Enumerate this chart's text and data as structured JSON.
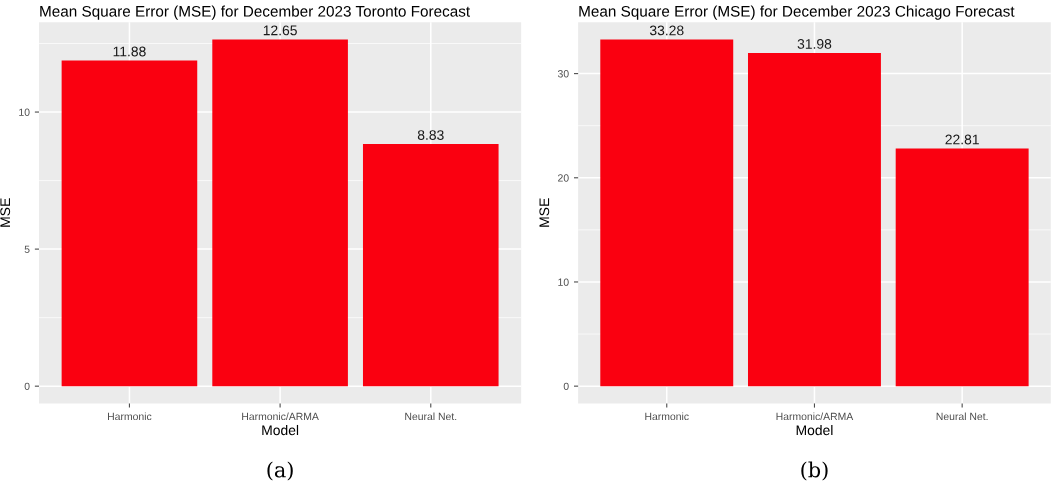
{
  "chart_data": [
    {
      "type": "bar",
      "title": "Mean Square Error (MSE) for December 2023 Toronto Forecast",
      "xlabel": "Model",
      "ylabel": "MSE",
      "categories": [
        "Harmonic",
        "Harmonic/ARMA",
        "Neural Net."
      ],
      "values": [
        11.88,
        12.65,
        8.83
      ],
      "color": "#fa0010",
      "ylim": [
        -0.63,
        13.28
      ],
      "yticks": [
        0,
        5,
        10
      ],
      "grid": true,
      "data_labels": true,
      "annotations": [
        "(a)"
      ]
    },
    {
      "type": "bar",
      "title": "Mean Square Error (MSE) for December 2023 Chicago Forecast",
      "xlabel": "Model",
      "ylabel": "MSE",
      "categories": [
        "Harmonic",
        "Harmonic/ARMA",
        "Neural Net."
      ],
      "values": [
        33.28,
        31.98,
        22.81
      ],
      "color": "#fa0010",
      "ylim": [
        -1.66,
        34.94
      ],
      "yticks": [
        0,
        10,
        20,
        30
      ],
      "grid": true,
      "data_labels": true,
      "annotations": [
        "(b)"
      ]
    }
  ]
}
